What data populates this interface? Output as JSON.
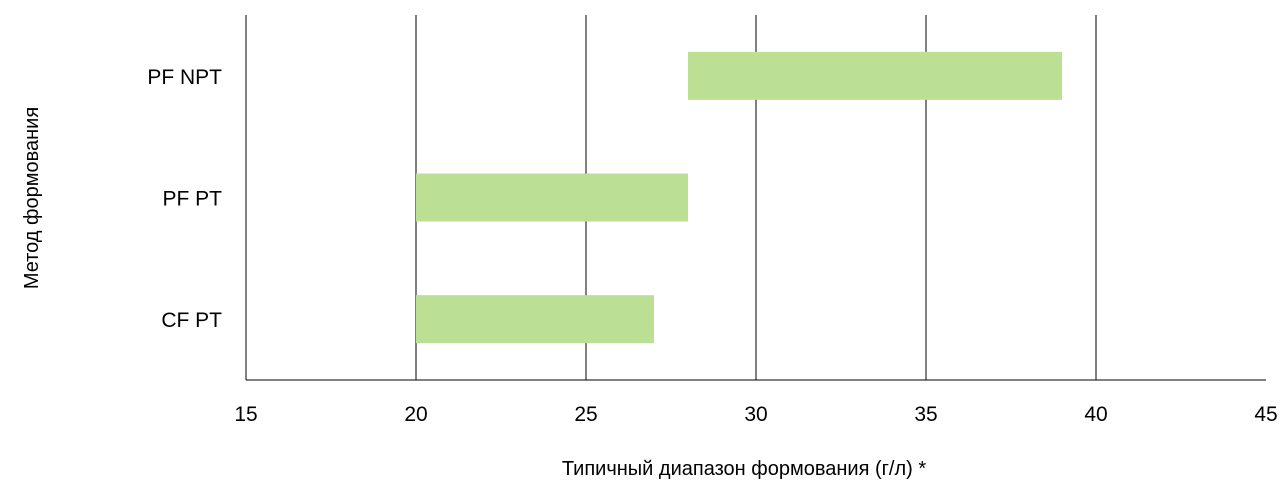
{
  "chart_data": {
    "type": "bar",
    "orientation": "horizontal",
    "subtype": "floating-range",
    "categories": [
      "PF NPT",
      "PF PT",
      "CF PT"
    ],
    "series": [
      {
        "ranges": [
          [
            28,
            39
          ],
          [
            20,
            28
          ],
          [
            20,
            27
          ]
        ]
      }
    ],
    "xlabel": "Типичный диапазон формования (г/л) *",
    "ylabel": "Метод формования",
    "xlim": [
      15,
      45
    ],
    "xticks": [
      15,
      20,
      25,
      30,
      35,
      40,
      45
    ],
    "grid": "vertical",
    "legend": "none",
    "colors": {
      "bar": "#bbdf93",
      "grid": "#000000",
      "axis": "#000000"
    }
  }
}
